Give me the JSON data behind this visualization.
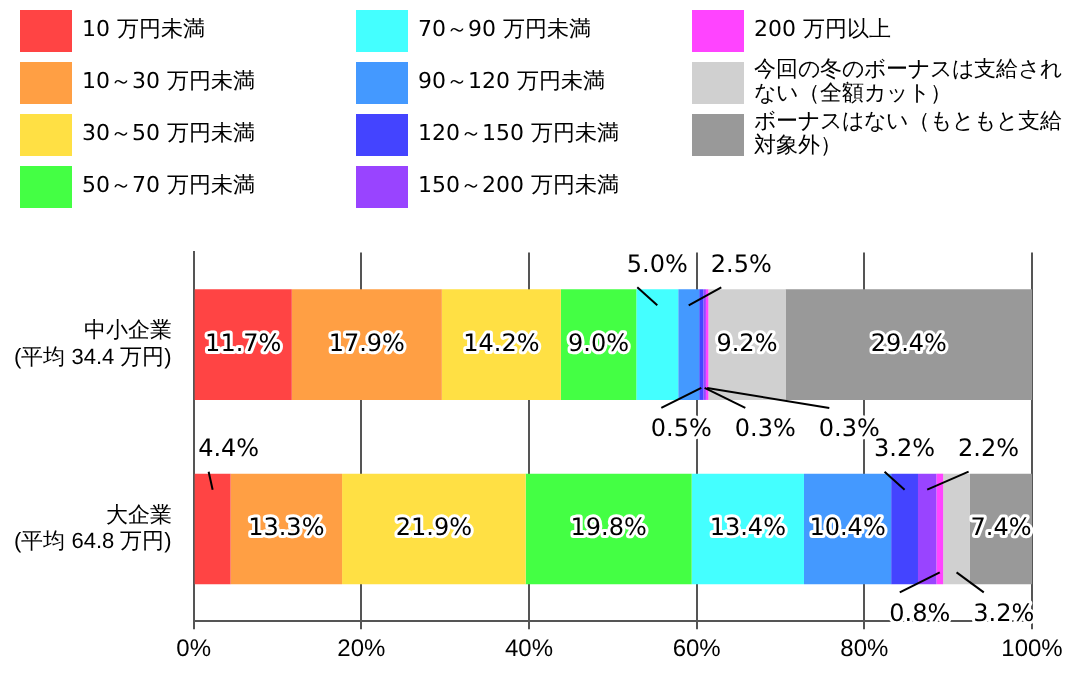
{
  "chart_data": {
    "type": "bar",
    "orientation": "horizontal",
    "stacked": true,
    "grid": "x",
    "legend": "top",
    "categories": [
      "中小企業\n(平均 34.4 万円)",
      "大企業\n(平均 64.8 万円)"
    ],
    "xlim": [
      0,
      100
    ],
    "xticks": [
      {
        "value": 0,
        "label": "0%"
      },
      {
        "value": 20,
        "label": "20%"
      },
      {
        "value": 40,
        "label": "40%"
      },
      {
        "value": 60,
        "label": "60%"
      },
      {
        "value": 80,
        "label": "80%"
      },
      {
        "value": 100,
        "label": "100%"
      }
    ],
    "series": [
      {
        "name": "10 万円未満",
        "color": "#ff4444",
        "values": [
          11.7,
          4.4
        ],
        "value_labels": [
          "11.7%",
          "4.4%"
        ]
      },
      {
        "name": "10～30 万円未満",
        "color": "#ff9f44",
        "values": [
          17.9,
          13.3
        ],
        "value_labels": [
          "17.9%",
          "13.3%"
        ]
      },
      {
        "name": "30～50 万円未満",
        "color": "#ffe044",
        "values": [
          14.2,
          21.9
        ],
        "value_labels": [
          "14.2%",
          "21.9%"
        ]
      },
      {
        "name": "50～70 万円未満",
        "color": "#44ff44",
        "values": [
          9.0,
          19.8
        ],
        "value_labels": [
          "9.0%",
          "19.8%"
        ]
      },
      {
        "name": "70～90 万円未満",
        "color": "#44ffff",
        "values": [
          5.0,
          13.4
        ],
        "value_labels": [
          "5.0%",
          "13.4%"
        ]
      },
      {
        "name": "90～120 万円未満",
        "color": "#4499ff",
        "values": [
          2.5,
          10.4
        ],
        "value_labels": [
          "2.5%",
          "10.4%"
        ]
      },
      {
        "name": "120～150 万円未満",
        "color": "#4444ff",
        "values": [
          0.5,
          3.2
        ],
        "value_labels": [
          "0.5%",
          "3.2%"
        ]
      },
      {
        "name": "150～200 万円未満",
        "color": "#9944ff",
        "values": [
          0.3,
          2.2
        ],
        "value_labels": [
          "0.3%",
          "2.2%"
        ]
      },
      {
        "name": "200 万円以上",
        "color": "#ff44ff",
        "values": [
          0.3,
          0.8
        ],
        "value_labels": [
          "0.3%",
          "0.8%"
        ]
      },
      {
        "name": "今回の冬のボーナスは支給されない（全額カット）",
        "color": "#d0d0d0",
        "values": [
          9.2,
          3.2
        ],
        "value_labels": [
          "9.2%",
          "3.2%"
        ]
      },
      {
        "name": "ボーナスはない（もともと支給対象外）",
        "color": "#999999",
        "values": [
          29.4,
          7.4
        ],
        "value_labels": [
          "29.4%",
          "7.4%"
        ]
      }
    ]
  }
}
